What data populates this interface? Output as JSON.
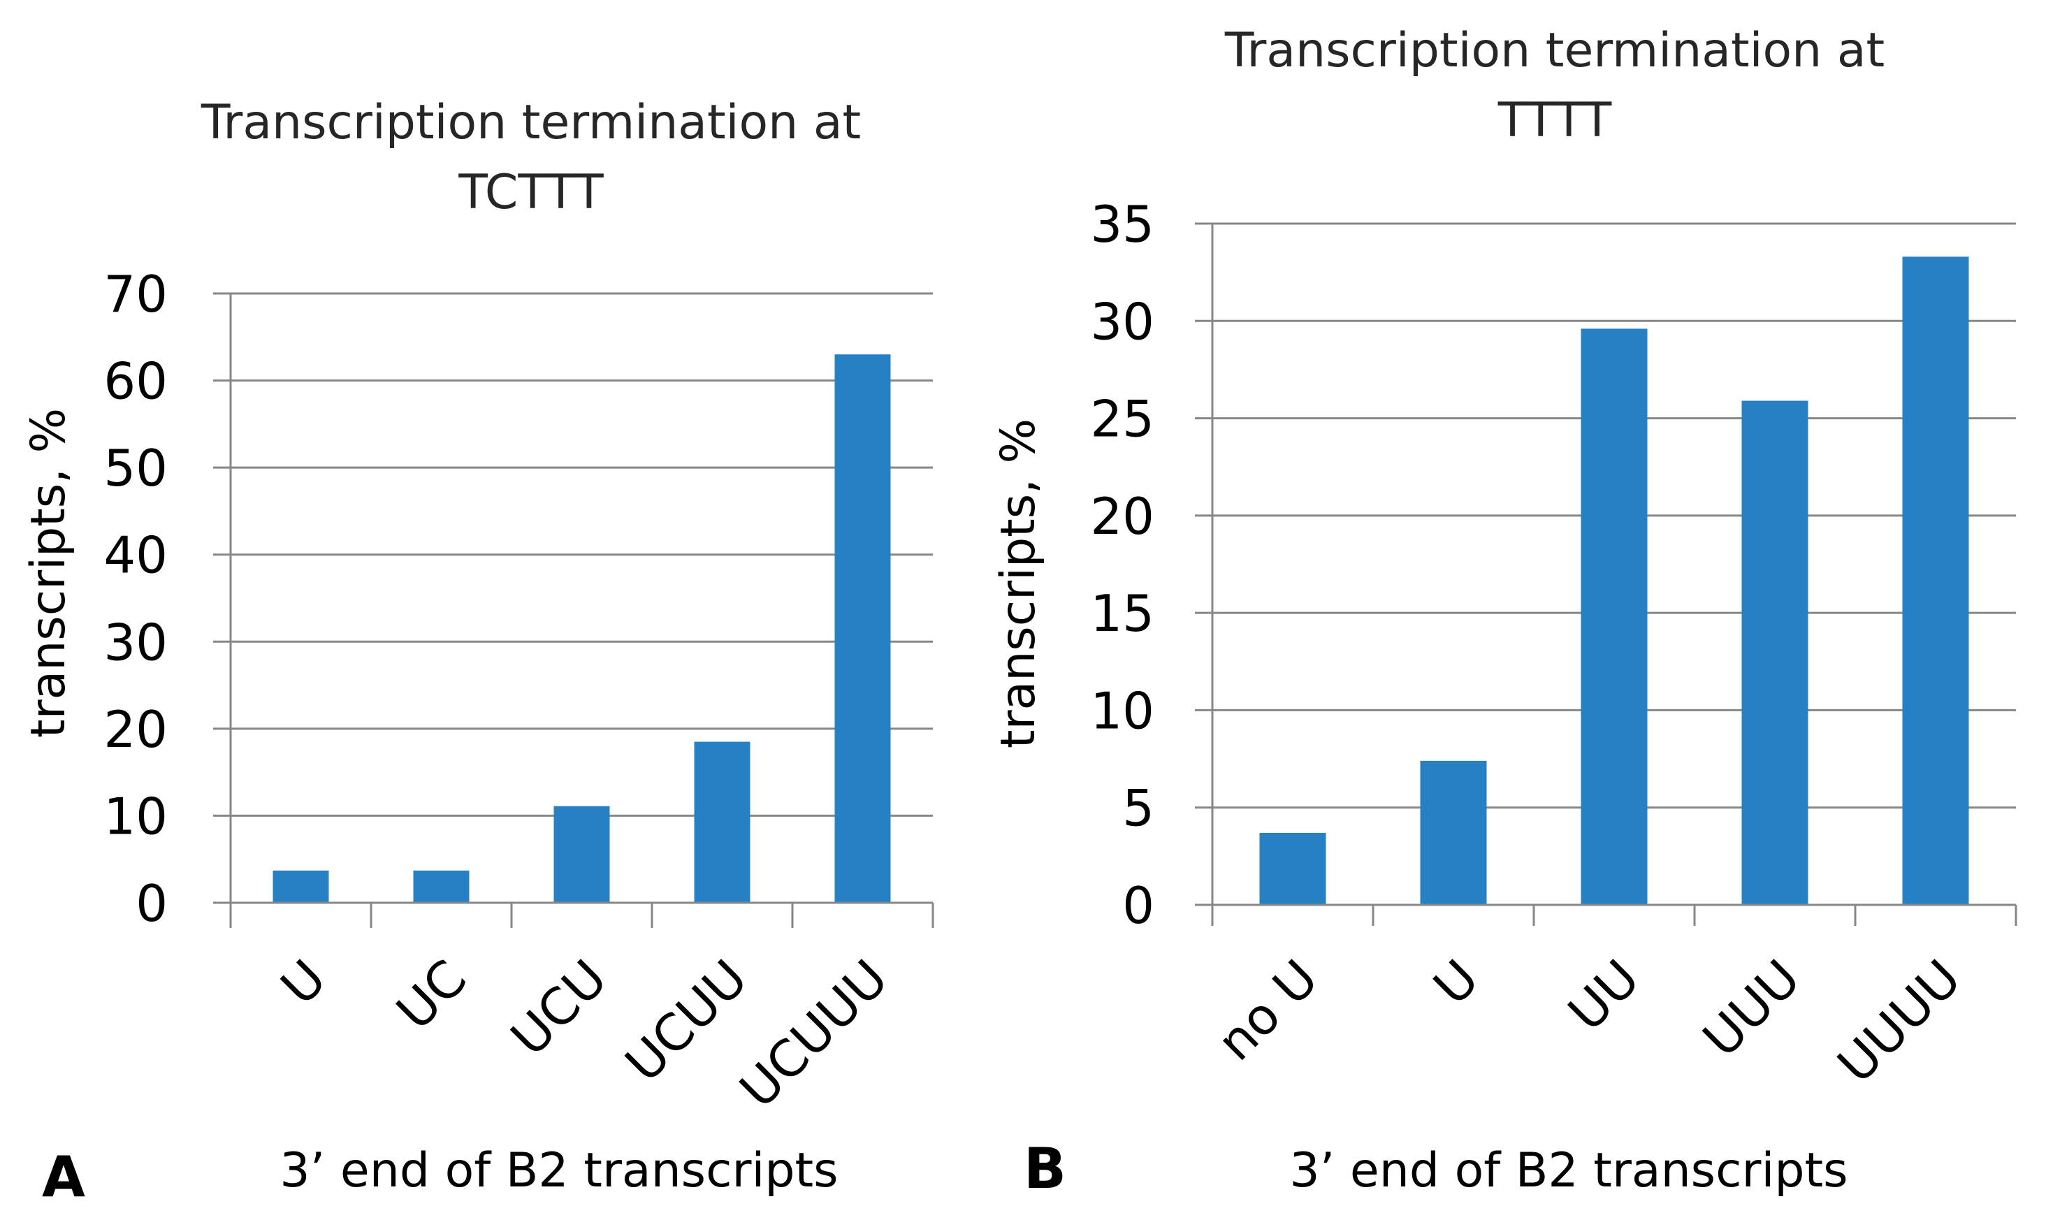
{
  "chart_data": [
    {
      "panel": "A",
      "type": "bar",
      "title_lines": [
        "Transcription termination at",
        "TCTTT"
      ],
      "xlabel": "3’ end of B2 transcripts",
      "ylabel": "transcripts, %",
      "categories": [
        "U",
        "UC",
        "UCU",
        "UCUU",
        "UCUUU"
      ],
      "values": [
        3.7,
        3.7,
        11.1,
        18.5,
        63
      ],
      "ylim": [
        0,
        70
      ],
      "yticks": [
        0,
        10,
        20,
        30,
        40,
        50,
        60,
        70
      ],
      "grid": true,
      "bar_color": "#2880C4"
    },
    {
      "panel": "B",
      "type": "bar",
      "title_lines": [
        "Transcription termination at",
        "TTTT"
      ],
      "xlabel": "3’ end of B2 transcripts",
      "ylabel": "transcripts, %",
      "categories": [
        "no U",
        "U",
        "UU",
        "UUU",
        "UUUU"
      ],
      "values": [
        3.7,
        7.4,
        29.6,
        25.9,
        33.3
      ],
      "ylim": [
        0,
        35
      ],
      "yticks": [
        0,
        5,
        10,
        15,
        20,
        25,
        30,
        35
      ],
      "grid": true,
      "bar_color": "#2880C4"
    }
  ]
}
